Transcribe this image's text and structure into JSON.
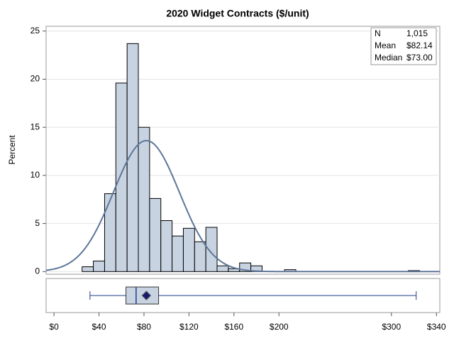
{
  "chart_data": {
    "type": "histogram",
    "title": "2020 Widget Contracts ($/unit)",
    "y_label": "Percent",
    "bins": [
      15,
      25,
      35,
      45,
      55,
      65,
      75,
      85,
      95,
      105,
      115,
      125,
      135,
      145,
      155,
      165,
      175,
      185,
      195,
      205,
      215,
      225,
      235,
      245,
      255,
      265,
      275,
      285,
      295,
      305,
      315,
      325
    ],
    "counts": [
      0,
      0.5,
      1.1,
      8.1,
      19.6,
      23.7,
      15.0,
      7.6,
      5.3,
      3.7,
      4.5,
      3.1,
      4.6,
      0.6,
      0.3,
      0.9,
      0.6,
      0,
      0,
      0.2,
      0,
      0,
      0,
      0,
      0,
      0,
      0,
      0,
      0,
      0,
      0.1
    ],
    "color": "#c8d3e2",
    "normal_curve": {
      "mean": 82.14,
      "sd": 29.3,
      "color": "#5d7699"
    },
    "box": {
      "min": 32,
      "q1": 64,
      "median": 73,
      "q3": 93,
      "max": 322,
      "mean": 82.14,
      "color": "#1f3c88"
    },
    "inset": {
      "rows": [
        [
          "N",
          "1,015"
        ],
        [
          "Mean",
          "$82.14"
        ],
        [
          "Median",
          "$73.00"
        ]
      ]
    },
    "xlim": [
      -7,
      343
    ],
    "ylim": [
      -0.2,
      25.5
    ],
    "xticks": [
      {
        "value": 0,
        "label": "$0"
      },
      {
        "value": 40,
        "label": "$40"
      },
      {
        "value": 80,
        "label": "$80"
      },
      {
        "value": 120,
        "label": "$120"
      },
      {
        "value": 160,
        "label": "$160"
      },
      {
        "value": 200,
        "label": "$200"
      },
      {
        "value": 300,
        "label": "$300"
      },
      {
        "value": 340,
        "label": "$340"
      }
    ],
    "yticks": [
      0,
      5,
      10,
      15,
      20,
      25
    ],
    "grid": true
  }
}
